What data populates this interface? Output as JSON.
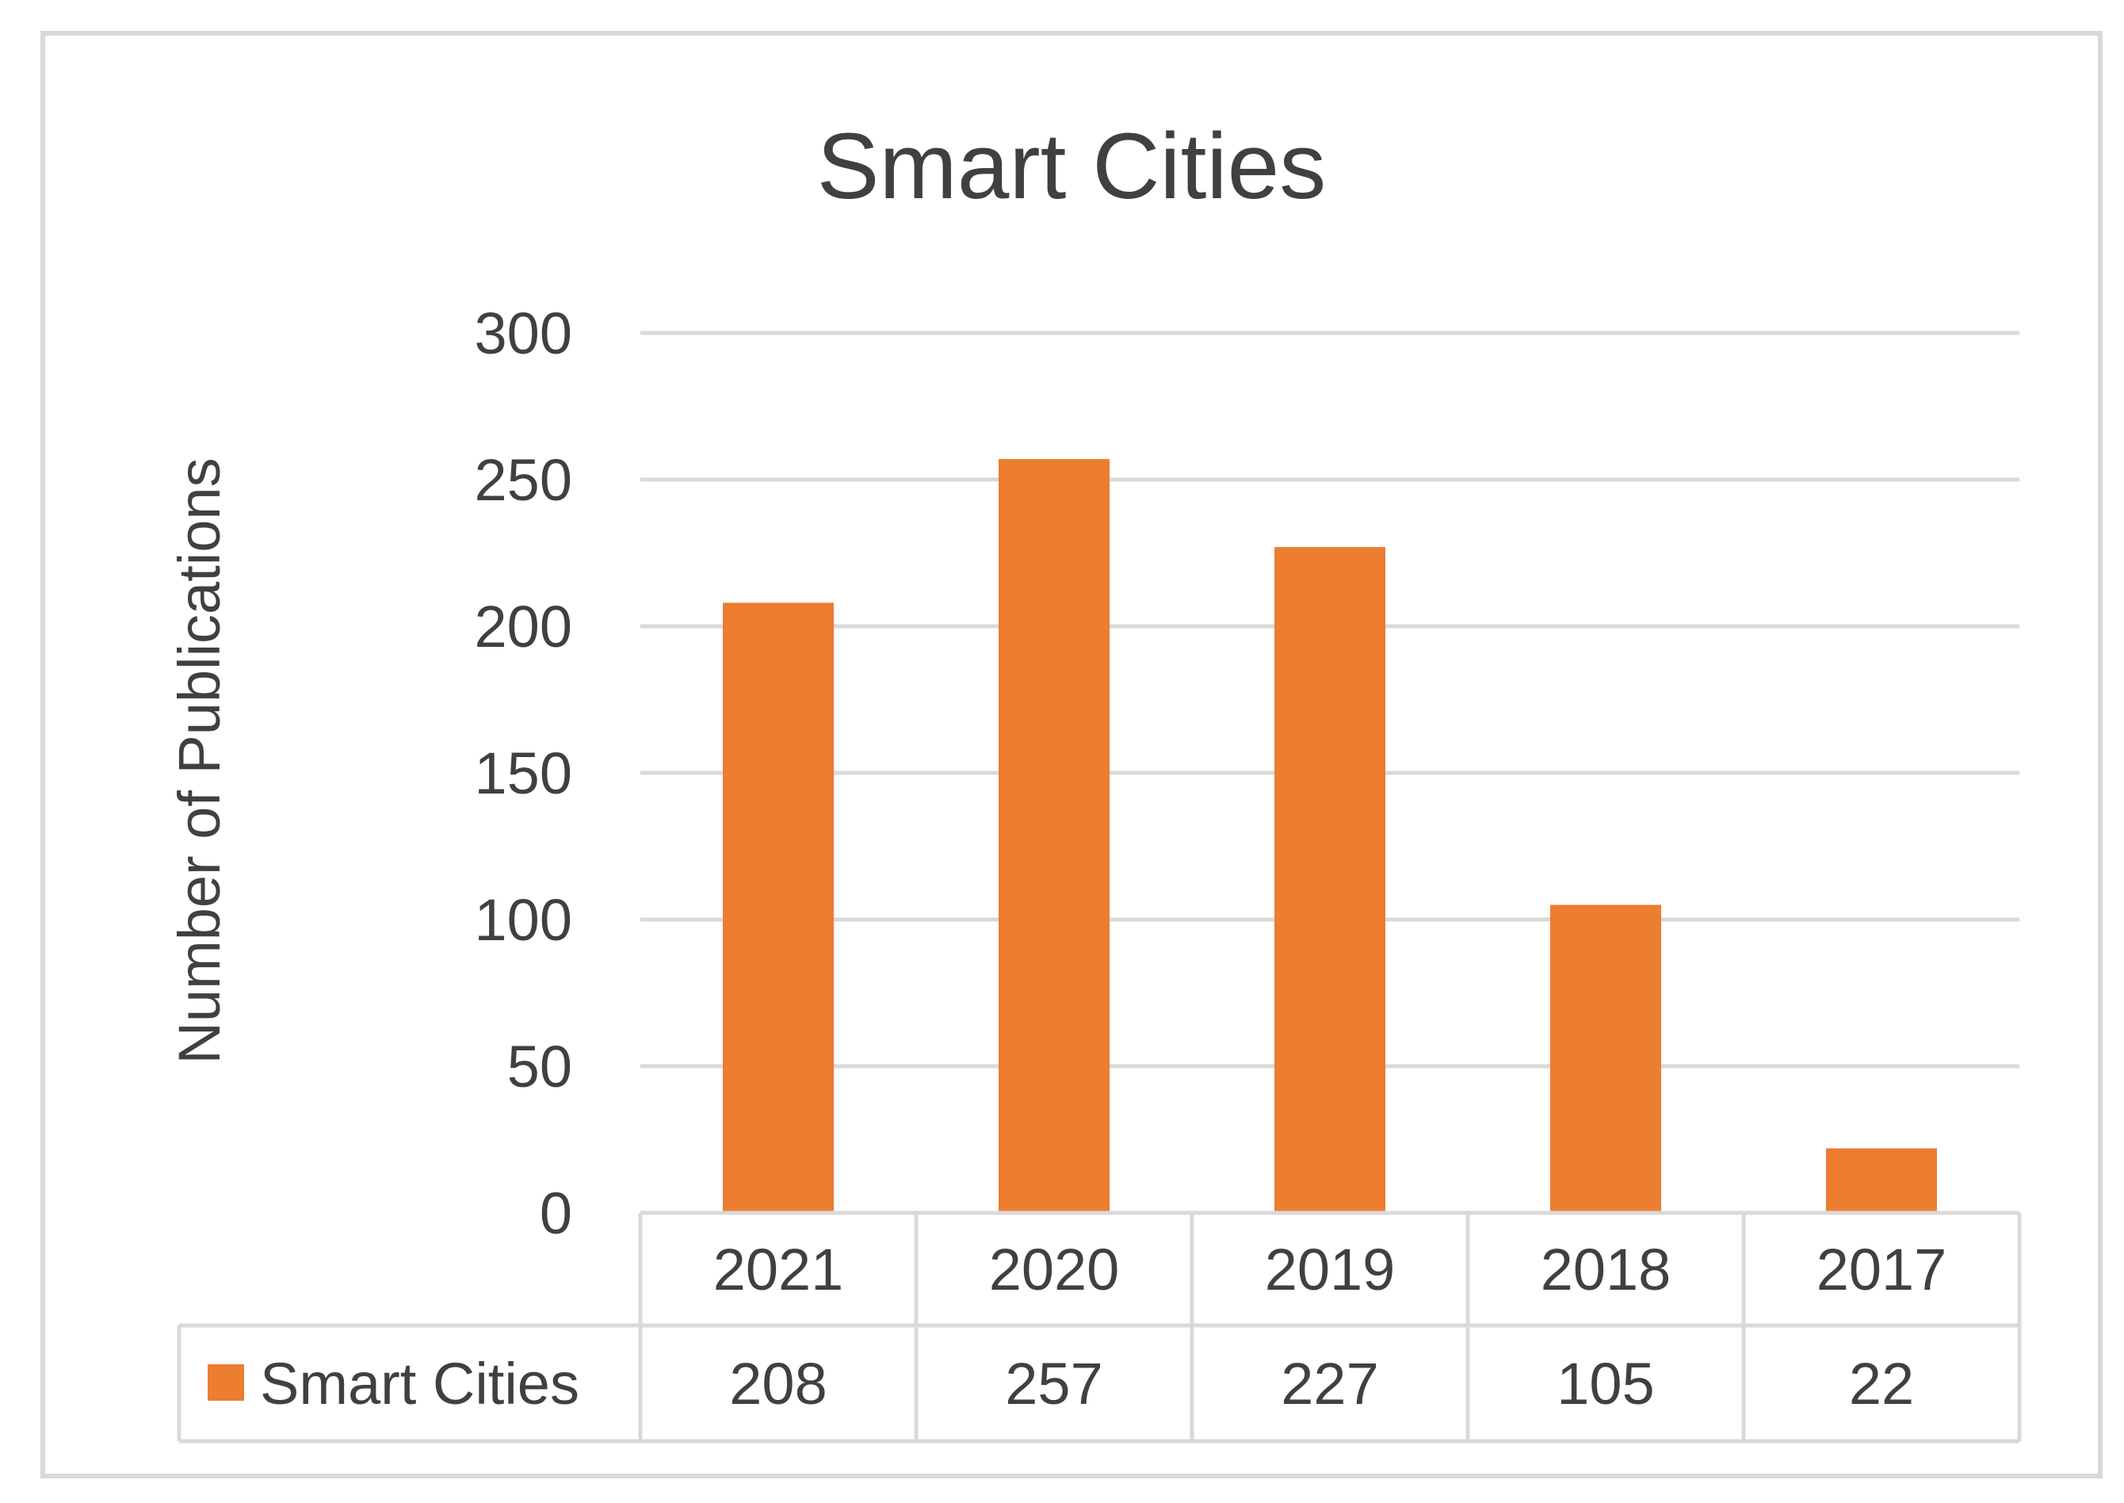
{
  "chart_data": {
    "type": "bar",
    "title": "Smart Cities",
    "xlabel": "",
    "ylabel": "Number of Publications",
    "categories": [
      "2021",
      "2020",
      "2019",
      "2018",
      "2017"
    ],
    "series": [
      {
        "name": "Smart Cities",
        "values": [
          208,
          257,
          227,
          105,
          22
        ]
      }
    ],
    "ylim": [
      0,
      300
    ],
    "yticks": [
      "0",
      "50",
      "100",
      "150",
      "200",
      "250",
      "300"
    ],
    "data_table": true,
    "grid": true,
    "colors": {
      "series": "#ED7D31",
      "grid": "#D9D9D9",
      "text": "#404040",
      "border": "#D9D9D9"
    }
  }
}
